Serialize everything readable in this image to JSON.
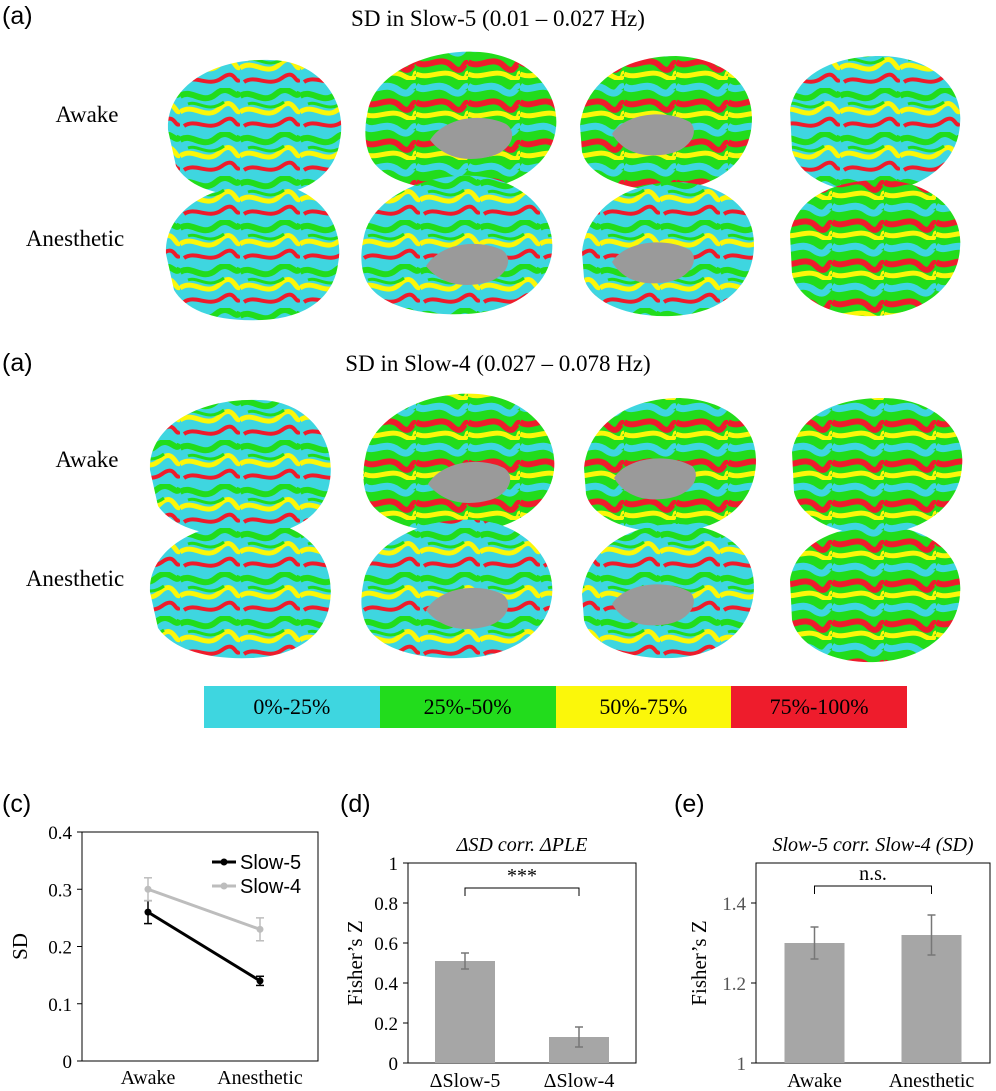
{
  "panel_labels": {
    "top": "(a)",
    "middle": "(a)",
    "c": "(c)",
    "d": "(d)",
    "e": "(e)"
  },
  "brain_panels": [
    {
      "title": "SD in Slow-5 (0.01 – 0.027 Hz)",
      "rows": [
        "Awake",
        "Anesthetic"
      ]
    },
    {
      "title": "SD in Slow-4 (0.027 – 0.078 Hz)",
      "rows": [
        "Awake",
        "Anesthetic"
      ]
    }
  ],
  "colorbar": {
    "segments": [
      {
        "label": "0%-25%",
        "color": "#3ed6e0"
      },
      {
        "label": "25%-50%",
        "color": "#22dc1c"
      },
      {
        "label": "50%-75%",
        "color": "#fbf70a"
      },
      {
        "label": "75%-100%",
        "color": "#ee1c2c"
      }
    ]
  },
  "colors": {
    "gray_matter": "#9a9a9a",
    "bar": "#a6a6a6",
    "slow5_line": "#000000",
    "slow4_line": "#bdbdbd"
  },
  "chart_data": [
    {
      "panel": "(c)",
      "type": "line",
      "title": "",
      "xlabel": "",
      "ylabel": "SD",
      "categories": [
        "Awake",
        "Anesthetic"
      ],
      "ylim": [
        0,
        0.4
      ],
      "yticks": [
        "0",
        "0.1",
        "0.2",
        "0.3",
        "0.4"
      ],
      "legend_position": "top-right",
      "series": [
        {
          "name": "Slow-5",
          "values": [
            0.26,
            0.14
          ],
          "errors": [
            0.02,
            0.008
          ]
        },
        {
          "name": "Slow-4",
          "values": [
            0.3,
            0.23
          ],
          "errors": [
            0.02,
            0.02
          ]
        }
      ]
    },
    {
      "panel": "(d)",
      "type": "bar",
      "title": "ΔSD corr. ΔPLE",
      "xlabel": "",
      "ylabel": "Fisher’s Z",
      "categories": [
        "ΔSlow-5",
        "ΔSlow-4"
      ],
      "values": [
        0.51,
        0.13
      ],
      "errors": [
        0.04,
        0.05
      ],
      "ylim": [
        0,
        1
      ],
      "yticks": [
        "0",
        "0.2",
        "0.4",
        "0.6",
        "0.8",
        "1"
      ],
      "annotation": "***"
    },
    {
      "panel": "(e)",
      "type": "bar",
      "title": "Slow-5 corr. Slow-4 (SD)",
      "xlabel": "",
      "ylabel": "Fisher’s Z",
      "categories": [
        "Awake",
        "Anesthetic"
      ],
      "values": [
        1.3,
        1.32
      ],
      "errors": [
        0.04,
        0.05
      ],
      "ylim": [
        1,
        1.5
      ],
      "yticks": [
        "1",
        "1.2",
        "1.4"
      ],
      "annotation": "n.s."
    }
  ]
}
